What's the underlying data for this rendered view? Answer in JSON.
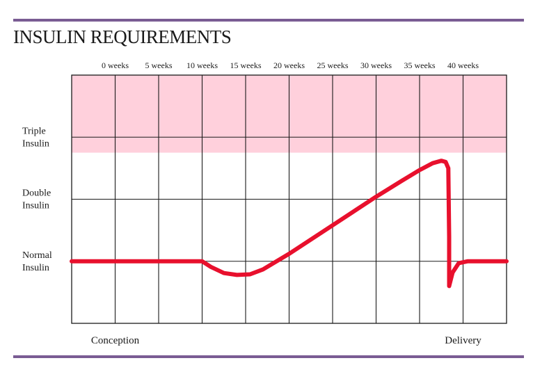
{
  "title": "INSULIN REQUIREMENTS",
  "colors": {
    "rule": "#7a5c93",
    "band": "#ffd0dc",
    "curve": "#e8102d",
    "grid": "#1a1a1a"
  },
  "chart_data": {
    "type": "line",
    "title": "INSULIN REQUIREMENTS",
    "x_ticks": [
      "0 weeks",
      "5 weeks",
      "10 weeks",
      "15 weeks",
      "20 weeks",
      "25 weeks",
      "30 weeks",
      "35 weeks",
      "40 weeks"
    ],
    "xlim": [
      -5,
      45
    ],
    "y_levels": [
      {
        "label": [
          "Triple",
          "Insulin"
        ],
        "value": 3
      },
      {
        "label": [
          "Double",
          "Insulin"
        ],
        "value": 2
      },
      {
        "label": [
          "Normal",
          "Insulin"
        ],
        "value": 1
      }
    ],
    "ylim": [
      0,
      4
    ],
    "highlight_band": {
      "from": 2.75,
      "to": 4
    },
    "x_annotations": [
      {
        "label": "Conception",
        "x": 0
      },
      {
        "label": "Delivery",
        "x": 40
      }
    ],
    "series": [
      {
        "points": [
          [
            -5,
            1
          ],
          [
            10,
            1
          ],
          [
            11,
            0.91
          ],
          [
            12.5,
            0.81
          ],
          [
            14,
            0.78
          ],
          [
            15.5,
            0.79
          ],
          [
            17,
            0.87
          ],
          [
            20,
            1.12
          ],
          [
            25,
            1.58
          ],
          [
            30,
            2.04
          ],
          [
            33,
            2.3
          ],
          [
            35,
            2.47
          ],
          [
            36.5,
            2.58
          ],
          [
            37.5,
            2.62
          ],
          [
            38,
            2.6
          ],
          [
            38.3,
            2.5
          ],
          [
            38.4,
            1.4
          ],
          [
            38.4,
            0.6
          ],
          [
            38.8,
            0.82
          ],
          [
            39.5,
            0.97
          ],
          [
            40.5,
            1
          ],
          [
            45,
            1
          ]
        ]
      }
    ]
  }
}
